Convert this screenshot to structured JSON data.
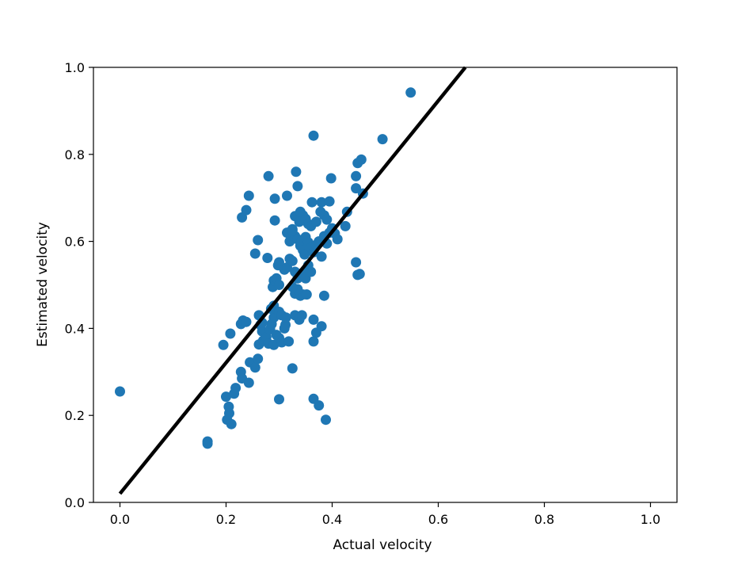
{
  "chart_data": {
    "type": "scatter",
    "title": "",
    "xlabel": "Actual velocity",
    "ylabel": "Estimated velocity",
    "xlim": [
      -0.05,
      1.05
    ],
    "ylim": [
      0.0,
      1.0
    ],
    "xticks": [
      "0.0",
      "0.2",
      "0.4",
      "0.6",
      "0.8",
      "1.0"
    ],
    "yticks": [
      "0.0",
      "0.2",
      "0.4",
      "0.6",
      "0.8",
      "1.0"
    ],
    "grid": false,
    "legend": "none",
    "colors": {
      "points": "#1f77b4",
      "fit_line": "#000000",
      "axes": "#000000"
    },
    "fit_line": {
      "x": [
        0.0,
        0.651
      ],
      "y": [
        0.02,
        1.0
      ]
    },
    "points": [
      [
        0.0,
        0.255
      ],
      [
        0.165,
        0.14
      ],
      [
        0.165,
        0.135
      ],
      [
        0.2,
        0.243
      ],
      [
        0.202,
        0.19
      ],
      [
        0.205,
        0.22
      ],
      [
        0.206,
        0.205
      ],
      [
        0.21,
        0.18
      ],
      [
        0.215,
        0.25
      ],
      [
        0.218,
        0.263
      ],
      [
        0.228,
        0.3
      ],
      [
        0.23,
        0.285
      ],
      [
        0.195,
        0.362
      ],
      [
        0.208,
        0.388
      ],
      [
        0.228,
        0.41
      ],
      [
        0.232,
        0.418
      ],
      [
        0.238,
        0.415
      ],
      [
        0.243,
        0.275
      ],
      [
        0.245,
        0.322
      ],
      [
        0.255,
        0.31
      ],
      [
        0.26,
        0.33
      ],
      [
        0.262,
        0.363
      ],
      [
        0.265,
        0.408
      ],
      [
        0.268,
        0.393
      ],
      [
        0.27,
        0.372
      ],
      [
        0.276,
        0.38
      ],
      [
        0.28,
        0.365
      ],
      [
        0.283,
        0.398
      ],
      [
        0.286,
        0.41
      ],
      [
        0.29,
        0.425
      ],
      [
        0.29,
        0.362
      ],
      [
        0.295,
        0.385
      ],
      [
        0.3,
        0.378
      ],
      [
        0.305,
        0.368
      ],
      [
        0.31,
        0.4
      ],
      [
        0.312,
        0.408
      ],
      [
        0.318,
        0.37
      ],
      [
        0.262,
        0.43
      ],
      [
        0.268,
        0.413
      ],
      [
        0.285,
        0.445
      ],
      [
        0.29,
        0.452
      ],
      [
        0.288,
        0.495
      ],
      [
        0.29,
        0.51
      ],
      [
        0.295,
        0.515
      ],
      [
        0.3,
        0.5
      ],
      [
        0.3,
        0.438
      ],
      [
        0.305,
        0.43
      ],
      [
        0.313,
        0.425
      ],
      [
        0.33,
        0.43
      ],
      [
        0.338,
        0.42
      ],
      [
        0.343,
        0.43
      ],
      [
        0.365,
        0.42
      ],
      [
        0.37,
        0.39
      ],
      [
        0.365,
        0.37
      ],
      [
        0.38,
        0.405
      ],
      [
        0.325,
        0.308
      ],
      [
        0.3,
        0.237
      ],
      [
        0.365,
        0.238
      ],
      [
        0.375,
        0.223
      ],
      [
        0.388,
        0.19
      ],
      [
        0.33,
        0.48
      ],
      [
        0.34,
        0.475
      ],
      [
        0.345,
        0.478
      ],
      [
        0.352,
        0.478
      ],
      [
        0.385,
        0.475
      ],
      [
        0.298,
        0.545
      ],
      [
        0.3,
        0.552
      ],
      [
        0.31,
        0.535
      ],
      [
        0.315,
        0.54
      ],
      [
        0.32,
        0.56
      ],
      [
        0.325,
        0.555
      ],
      [
        0.33,
        0.53
      ],
      [
        0.335,
        0.515
      ],
      [
        0.34,
        0.52
      ],
      [
        0.345,
        0.528
      ],
      [
        0.35,
        0.515
      ],
      [
        0.355,
        0.545
      ],
      [
        0.36,
        0.53
      ],
      [
        0.335,
        0.49
      ],
      [
        0.325,
        0.495
      ],
      [
        0.255,
        0.572
      ],
      [
        0.26,
        0.603
      ],
      [
        0.278,
        0.562
      ],
      [
        0.32,
        0.6
      ],
      [
        0.322,
        0.615
      ],
      [
        0.325,
        0.628
      ],
      [
        0.33,
        0.612
      ],
      [
        0.335,
        0.605
      ],
      [
        0.34,
        0.59
      ],
      [
        0.342,
        0.6
      ],
      [
        0.345,
        0.58
      ],
      [
        0.348,
        0.57
      ],
      [
        0.35,
        0.61
      ],
      [
        0.355,
        0.598
      ],
      [
        0.36,
        0.585
      ],
      [
        0.365,
        0.575
      ],
      [
        0.37,
        0.592
      ],
      [
        0.375,
        0.6
      ],
      [
        0.38,
        0.565
      ],
      [
        0.385,
        0.612
      ],
      [
        0.39,
        0.595
      ],
      [
        0.395,
        0.62
      ],
      [
        0.4,
        0.63
      ],
      [
        0.405,
        0.618
      ],
      [
        0.41,
        0.605
      ],
      [
        0.425,
        0.635
      ],
      [
        0.33,
        0.658
      ],
      [
        0.338,
        0.645
      ],
      [
        0.345,
        0.66
      ],
      [
        0.35,
        0.652
      ],
      [
        0.355,
        0.64
      ],
      [
        0.36,
        0.635
      ],
      [
        0.37,
        0.645
      ],
      [
        0.378,
        0.668
      ],
      [
        0.385,
        0.66
      ],
      [
        0.39,
        0.65
      ],
      [
        0.428,
        0.668
      ],
      [
        0.315,
        0.62
      ],
      [
        0.325,
        0.625
      ],
      [
        0.362,
        0.69
      ],
      [
        0.38,
        0.69
      ],
      [
        0.395,
        0.692
      ],
      [
        0.34,
        0.668
      ],
      [
        0.23,
        0.655
      ],
      [
        0.238,
        0.672
      ],
      [
        0.243,
        0.705
      ],
      [
        0.28,
        0.75
      ],
      [
        0.292,
        0.698
      ],
      [
        0.292,
        0.648
      ],
      [
        0.315,
        0.705
      ],
      [
        0.332,
        0.76
      ],
      [
        0.335,
        0.727
      ],
      [
        0.365,
        0.843
      ],
      [
        0.398,
        0.745
      ],
      [
        0.445,
        0.722
      ],
      [
        0.448,
        0.78
      ],
      [
        0.455,
        0.788
      ],
      [
        0.445,
        0.75
      ],
      [
        0.458,
        0.71
      ],
      [
        0.495,
        0.835
      ],
      [
        0.548,
        0.942
      ],
      [
        0.445,
        0.552
      ],
      [
        0.448,
        0.523
      ],
      [
        0.452,
        0.525
      ]
    ]
  }
}
